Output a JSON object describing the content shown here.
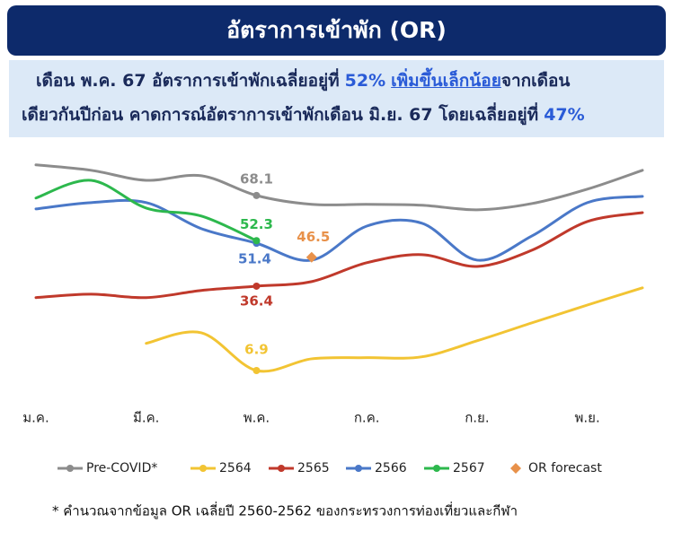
{
  "chart_data": {
    "type": "line",
    "title": "อัตราการเข้าพัก (OR)",
    "note_lines": [
      [
        {
          "text": "เดือน พ.ค. 67 อัตราการเข้าพักเฉลี่ยอยู่ที่",
          "style": "plain"
        },
        {
          "text": "52%",
          "style": "emphasis"
        },
        {
          "text": "เพิ่มขึ้นเล็กน้อย",
          "style": "underline"
        },
        {
          "text": "จากเดือน",
          "style": "plain"
        }
      ],
      [
        {
          "text": "เดียวกันปีก่อน คาดการณ์อัตราการเข้าพักเดือน มิ.ย. 67 โดยเฉลี่ยอยู่ที่",
          "style": "plain"
        },
        {
          "text": "47%",
          "style": "emphasis"
        }
      ]
    ],
    "categories": [
      "ม.ค.",
      null,
      "มี.ค.",
      null,
      "พ.ค.",
      null,
      "ก.ค.",
      null,
      "ก.ย.",
      null,
      "พ.ย.",
      null
    ],
    "ylim": [
      0,
      85
    ],
    "grid": false,
    "series": [
      {
        "name": "Pre-COVID*",
        "color": "#8c8c8c",
        "marker": "circle",
        "labeled_points": [
          4
        ],
        "values": [
          78.8,
          76.9,
          73.4,
          75.0,
          68.1,
          65.0,
          65.0,
          64.7,
          63.1,
          65.3,
          70.3,
          76.9
        ]
      },
      {
        "name": "2564",
        "color": "#f2c433",
        "marker": "circle",
        "labeled_points": [
          4
        ],
        "values": [
          null,
          null,
          16.4,
          20.1,
          6.9,
          11.0,
          11.4,
          11.7,
          17.3,
          23.6,
          29.8,
          35.8
        ]
      },
      {
        "name": "2565",
        "color": "#c0392b",
        "marker": "circle",
        "labeled_points": [
          4
        ],
        "values": [
          32.4,
          33.6,
          32.4,
          34.9,
          36.4,
          38.0,
          44.6,
          47.4,
          43.3,
          49.0,
          59.0,
          62.1
        ]
      },
      {
        "name": "2566",
        "color": "#4a78c8",
        "marker": "circle",
        "labeled_points": [
          4
        ],
        "values": [
          63.4,
          65.6,
          65.6,
          56.5,
          51.4,
          45.5,
          57.4,
          58.4,
          45.5,
          54.0,
          65.6,
          67.8
        ]
      },
      {
        "name": "2567",
        "color": "#2db84d",
        "marker": "circle",
        "labeled_points": [
          4
        ],
        "values": [
          67.2,
          73.4,
          63.7,
          60.9,
          52.3,
          null,
          null,
          null,
          null,
          null,
          null,
          null
        ]
      },
      {
        "name": "OR forecast",
        "color": "#e8914a",
        "marker": "diamond",
        "labeled_points": [
          5
        ],
        "values": [
          null,
          null,
          null,
          null,
          null,
          46.5,
          null,
          null,
          null,
          null,
          null,
          null
        ]
      }
    ],
    "footnote": "* คำนวณจากข้อมูล OR เฉลี่ยปี 2560-2562  ของกระทรวงการท่องเที่ยวและกีฬา"
  }
}
